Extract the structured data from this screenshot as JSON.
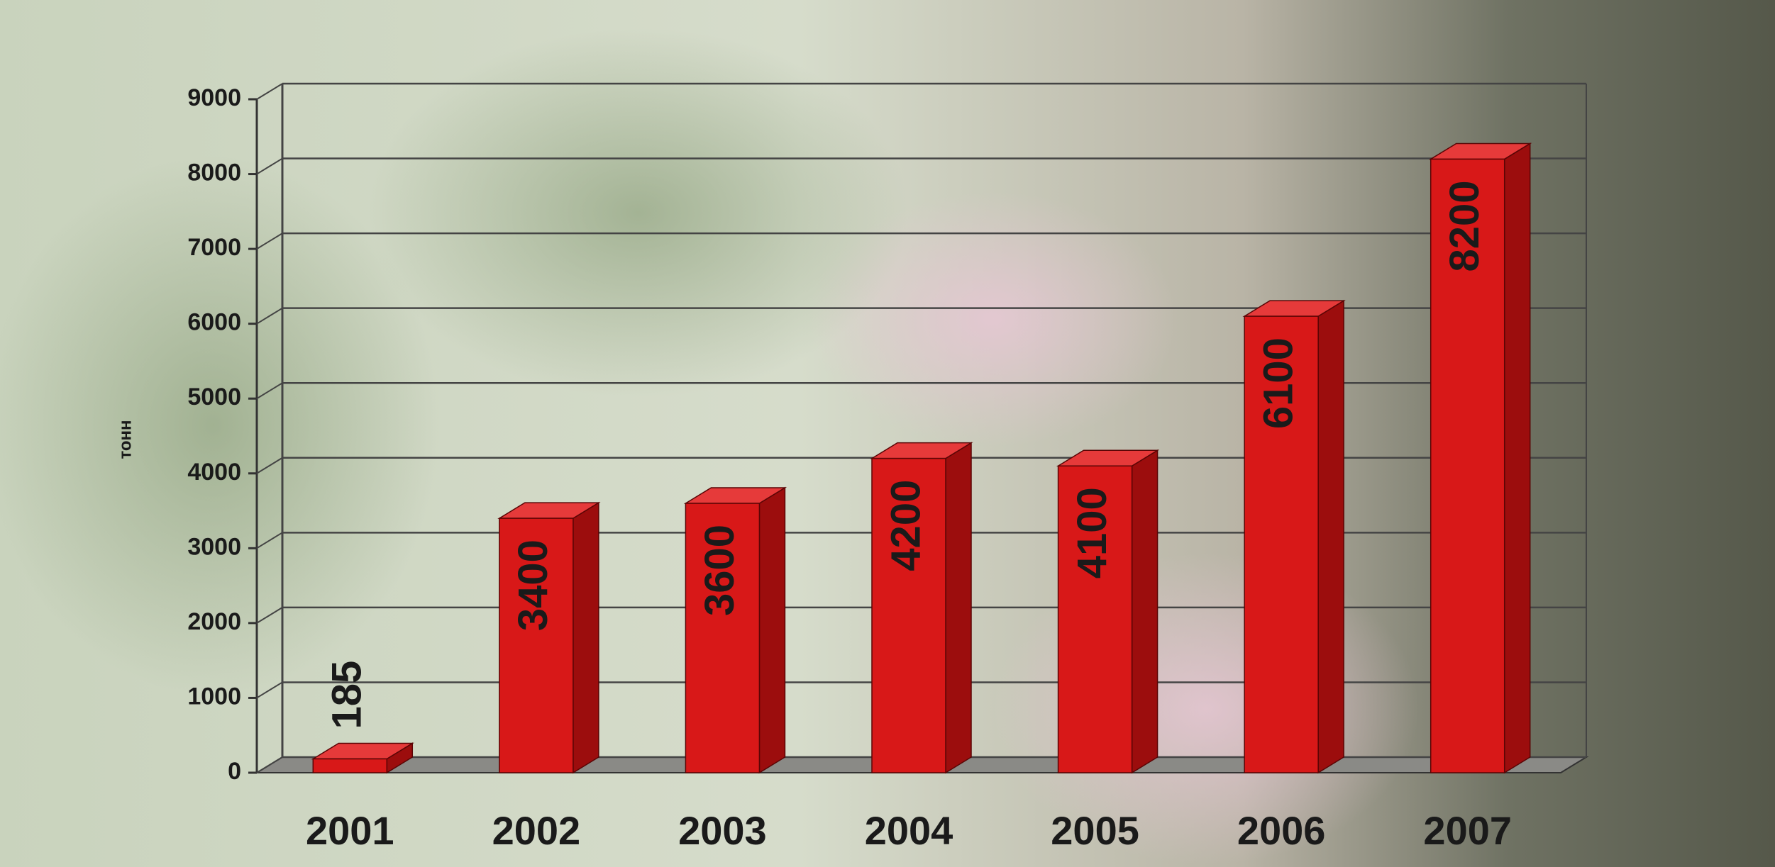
{
  "chart_data": {
    "type": "bar3d",
    "y_label": "тонн",
    "categories": [
      "2001",
      "2002",
      "2003",
      "2004",
      "2005",
      "2006",
      "2007"
    ],
    "values": [
      185,
      3400,
      3600,
      4200,
      4100,
      6100,
      8200
    ],
    "color": "#d81818",
    "ylim": [
      0,
      9000
    ],
    "yticks": [
      0,
      1000,
      2000,
      3000,
      4000,
      5000,
      6000,
      7000,
      8000,
      9000
    ],
    "grid": true
  }
}
